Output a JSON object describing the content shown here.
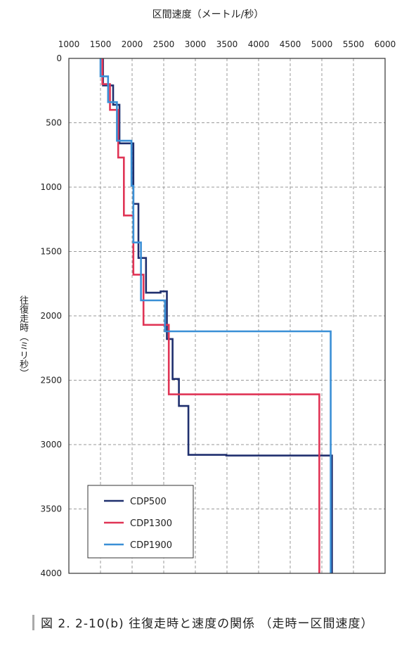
{
  "chart_data": {
    "type": "line",
    "title": "",
    "xlabel": "区間速度（メートル/秒）",
    "ylabel": "往復走時（ミリ秒）",
    "xlim": [
      1000,
      6000
    ],
    "ylim": [
      0,
      4000
    ],
    "y_inverted": true,
    "x_axis_position": "top",
    "x_ticks": [
      "1000",
      "1500",
      "2000",
      "2500",
      "3000",
      "3500",
      "4000",
      "4500",
      "5000",
      "5500",
      "6000"
    ],
    "y_ticks": [
      "0",
      "500",
      "1000",
      "1500",
      "2000",
      "2500",
      "3000",
      "3500",
      "4000"
    ],
    "grid": true,
    "legend_position": "bottom-left",
    "series": [
      {
        "name": "CDP500",
        "color": "#1f2f6e",
        "points": [
          [
            1540,
            0
          ],
          [
            1540,
            210
          ],
          [
            1700,
            210
          ],
          [
            1700,
            360
          ],
          [
            1800,
            360
          ],
          [
            1800,
            660
          ],
          [
            2020,
            660
          ],
          [
            2020,
            1130
          ],
          [
            2100,
            1130
          ],
          [
            2100,
            1550
          ],
          [
            2220,
            1550
          ],
          [
            2220,
            1820
          ],
          [
            2450,
            1820
          ],
          [
            2450,
            1810
          ],
          [
            2550,
            1810
          ],
          [
            2550,
            2180
          ],
          [
            2640,
            2180
          ],
          [
            2640,
            2490
          ],
          [
            2740,
            2490
          ],
          [
            2740,
            2700
          ],
          [
            2890,
            2700
          ],
          [
            2890,
            3080
          ],
          [
            3490,
            3080
          ],
          [
            3490,
            3085
          ],
          [
            5160,
            3085
          ],
          [
            5160,
            4000
          ]
        ]
      },
      {
        "name": "CDP1300",
        "color": "#e03455",
        "points": [
          [
            1530,
            0
          ],
          [
            1530,
            200
          ],
          [
            1650,
            200
          ],
          [
            1650,
            400
          ],
          [
            1780,
            400
          ],
          [
            1780,
            770
          ],
          [
            1870,
            770
          ],
          [
            1870,
            1220
          ],
          [
            2020,
            1220
          ],
          [
            2020,
            1680
          ],
          [
            2180,
            1680
          ],
          [
            2180,
            2070
          ],
          [
            2370,
            2070
          ],
          [
            2370,
            2070
          ],
          [
            2580,
            2070
          ],
          [
            2580,
            2610
          ],
          [
            2620,
            2610
          ],
          [
            2620,
            2610
          ],
          [
            4960,
            2610
          ],
          [
            4960,
            4000
          ]
        ]
      },
      {
        "name": "CDP1900",
        "color": "#3a8fd6",
        "points": [
          [
            1500,
            0
          ],
          [
            1500,
            140
          ],
          [
            1620,
            140
          ],
          [
            1620,
            340
          ],
          [
            1760,
            340
          ],
          [
            1760,
            640
          ],
          [
            1990,
            640
          ],
          [
            1990,
            990
          ],
          [
            2020,
            990
          ],
          [
            2020,
            1430
          ],
          [
            2140,
            1430
          ],
          [
            2140,
            1880
          ],
          [
            2520,
            1880
          ],
          [
            2520,
            2120
          ],
          [
            5140,
            2120
          ],
          [
            5140,
            4000
          ]
        ]
      }
    ]
  },
  "caption": "図 2. 2-10(b) 往復走時と速度の関係 （走時ー区間速度）"
}
